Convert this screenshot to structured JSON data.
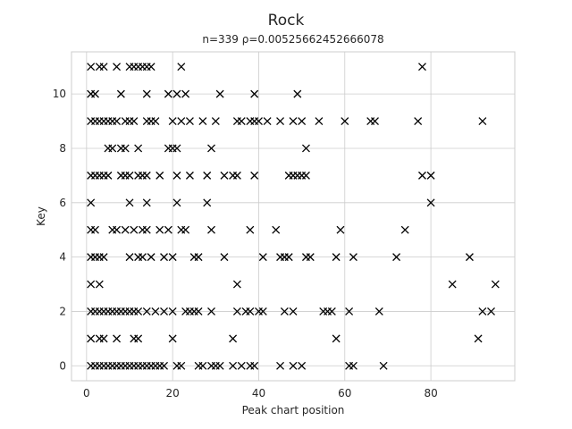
{
  "chart_data": {
    "type": "scatter",
    "title": "Rock",
    "subtitle": "n=339 ρ=0.00525662452666078",
    "xlabel": "Peak chart position",
    "ylabel": "Key",
    "xlim": [
      -3.5,
      99.5
    ],
    "ylim": [
      -0.55,
      11.55
    ],
    "xticks": [
      0,
      20,
      40,
      60,
      80
    ],
    "yticks": [
      0,
      2,
      4,
      6,
      8,
      10
    ],
    "grid": true,
    "marker": "x",
    "colors": {
      "marker": "#000000",
      "grid": "#cccccc",
      "text": "#262626"
    },
    "series": [
      {
        "points": [
          [
            1,
            11
          ],
          [
            3,
            11
          ],
          [
            4,
            11
          ],
          [
            7,
            11
          ],
          [
            10,
            11
          ],
          [
            11,
            11
          ],
          [
            12,
            11
          ],
          [
            13,
            11
          ],
          [
            14,
            11
          ],
          [
            15,
            11
          ],
          [
            22,
            11
          ],
          [
            78,
            11
          ],
          [
            1,
            10
          ],
          [
            2,
            10
          ],
          [
            8,
            10
          ],
          [
            14,
            10
          ],
          [
            19,
            10
          ],
          [
            21,
            10
          ],
          [
            23,
            10
          ],
          [
            31,
            10
          ],
          [
            39,
            10
          ],
          [
            49,
            10
          ],
          [
            1,
            9
          ],
          [
            2,
            9
          ],
          [
            3,
            9
          ],
          [
            4,
            9
          ],
          [
            5,
            9
          ],
          [
            6,
            9
          ],
          [
            7,
            9
          ],
          [
            9,
            9
          ],
          [
            10,
            9
          ],
          [
            11,
            9
          ],
          [
            14,
            9
          ],
          [
            15,
            9
          ],
          [
            16,
            9
          ],
          [
            20,
            9
          ],
          [
            22,
            9
          ],
          [
            24,
            9
          ],
          [
            27,
            9
          ],
          [
            30,
            9
          ],
          [
            35,
            9
          ],
          [
            36,
            9
          ],
          [
            38,
            9
          ],
          [
            39,
            9
          ],
          [
            40,
            9
          ],
          [
            42,
            9
          ],
          [
            45,
            9
          ],
          [
            48,
            9
          ],
          [
            50,
            9
          ],
          [
            54,
            9
          ],
          [
            60,
            9
          ],
          [
            66,
            9
          ],
          [
            67,
            9
          ],
          [
            77,
            9
          ],
          [
            92,
            9
          ],
          [
            5,
            8
          ],
          [
            6,
            8
          ],
          [
            8,
            8
          ],
          [
            9,
            8
          ],
          [
            12,
            8
          ],
          [
            19,
            8
          ],
          [
            20,
            8
          ],
          [
            21,
            8
          ],
          [
            29,
            8
          ],
          [
            51,
            8
          ],
          [
            1,
            7
          ],
          [
            2,
            7
          ],
          [
            3,
            7
          ],
          [
            4,
            7
          ],
          [
            5,
            7
          ],
          [
            8,
            7
          ],
          [
            9,
            7
          ],
          [
            10,
            7
          ],
          [
            12,
            7
          ],
          [
            13,
            7
          ],
          [
            14,
            7
          ],
          [
            17,
            7
          ],
          [
            21,
            7
          ],
          [
            24,
            7
          ],
          [
            28,
            7
          ],
          [
            32,
            7
          ],
          [
            34,
            7
          ],
          [
            35,
            7
          ],
          [
            39,
            7
          ],
          [
            47,
            7
          ],
          [
            48,
            7
          ],
          [
            49,
            7
          ],
          [
            50,
            7
          ],
          [
            51,
            7
          ],
          [
            78,
            7
          ],
          [
            80,
            7
          ],
          [
            1,
            6
          ],
          [
            10,
            6
          ],
          [
            14,
            6
          ],
          [
            21,
            6
          ],
          [
            28,
            6
          ],
          [
            80,
            6
          ],
          [
            1,
            5
          ],
          [
            2,
            5
          ],
          [
            6,
            5
          ],
          [
            7,
            5
          ],
          [
            9,
            5
          ],
          [
            11,
            5
          ],
          [
            13,
            5
          ],
          [
            14,
            5
          ],
          [
            17,
            5
          ],
          [
            19,
            5
          ],
          [
            22,
            5
          ],
          [
            23,
            5
          ],
          [
            29,
            5
          ],
          [
            38,
            5
          ],
          [
            44,
            5
          ],
          [
            59,
            5
          ],
          [
            74,
            5
          ],
          [
            1,
            4
          ],
          [
            2,
            4
          ],
          [
            3,
            4
          ],
          [
            4,
            4
          ],
          [
            10,
            4
          ],
          [
            12,
            4
          ],
          [
            13,
            4
          ],
          [
            15,
            4
          ],
          [
            18,
            4
          ],
          [
            20,
            4
          ],
          [
            25,
            4
          ],
          [
            26,
            4
          ],
          [
            32,
            4
          ],
          [
            41,
            4
          ],
          [
            45,
            4
          ],
          [
            46,
            4
          ],
          [
            47,
            4
          ],
          [
            51,
            4
          ],
          [
            52,
            4
          ],
          [
            58,
            4
          ],
          [
            62,
            4
          ],
          [
            72,
            4
          ],
          [
            89,
            4
          ],
          [
            1,
            3
          ],
          [
            3,
            3
          ],
          [
            35,
            3
          ],
          [
            85,
            3
          ],
          [
            95,
            3
          ],
          [
            1,
            2
          ],
          [
            2,
            2
          ],
          [
            3,
            2
          ],
          [
            4,
            2
          ],
          [
            5,
            2
          ],
          [
            6,
            2
          ],
          [
            7,
            2
          ],
          [
            8,
            2
          ],
          [
            9,
            2
          ],
          [
            10,
            2
          ],
          [
            11,
            2
          ],
          [
            12,
            2
          ],
          [
            14,
            2
          ],
          [
            16,
            2
          ],
          [
            18,
            2
          ],
          [
            20,
            2
          ],
          [
            23,
            2
          ],
          [
            24,
            2
          ],
          [
            25,
            2
          ],
          [
            26,
            2
          ],
          [
            29,
            2
          ],
          [
            35,
            2
          ],
          [
            37,
            2
          ],
          [
            38,
            2
          ],
          [
            40,
            2
          ],
          [
            41,
            2
          ],
          [
            46,
            2
          ],
          [
            48,
            2
          ],
          [
            55,
            2
          ],
          [
            56,
            2
          ],
          [
            57,
            2
          ],
          [
            61,
            2
          ],
          [
            68,
            2
          ],
          [
            92,
            2
          ],
          [
            94,
            2
          ],
          [
            1,
            1
          ],
          [
            3,
            1
          ],
          [
            4,
            1
          ],
          [
            7,
            1
          ],
          [
            11,
            1
          ],
          [
            12,
            1
          ],
          [
            20,
            1
          ],
          [
            34,
            1
          ],
          [
            58,
            1
          ],
          [
            91,
            1
          ],
          [
            1,
            0
          ],
          [
            2,
            0
          ],
          [
            3,
            0
          ],
          [
            4,
            0
          ],
          [
            5,
            0
          ],
          [
            6,
            0
          ],
          [
            7,
            0
          ],
          [
            8,
            0
          ],
          [
            9,
            0
          ],
          [
            10,
            0
          ],
          [
            11,
            0
          ],
          [
            12,
            0
          ],
          [
            13,
            0
          ],
          [
            14,
            0
          ],
          [
            15,
            0
          ],
          [
            16,
            0
          ],
          [
            17,
            0
          ],
          [
            18,
            0
          ],
          [
            21,
            0
          ],
          [
            22,
            0
          ],
          [
            26,
            0
          ],
          [
            27,
            0
          ],
          [
            29,
            0
          ],
          [
            30,
            0
          ],
          [
            31,
            0
          ],
          [
            34,
            0
          ],
          [
            36,
            0
          ],
          [
            38,
            0
          ],
          [
            39,
            0
          ],
          [
            45,
            0
          ],
          [
            48,
            0
          ],
          [
            50,
            0
          ],
          [
            61,
            0
          ],
          [
            62,
            0
          ],
          [
            69,
            0
          ]
        ]
      }
    ]
  }
}
